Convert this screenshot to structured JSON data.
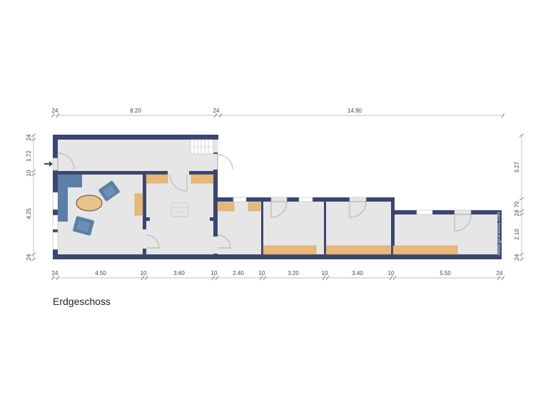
{
  "plan": {
    "floor_title": "Erdgeschoss",
    "watermark": "www.grundriss.com",
    "colors": {
      "wall": "#3b4670",
      "floor": "#e6e6e6",
      "cabinet": "#e8b878",
      "furniture": "#5b7fa6"
    },
    "dimensions": {
      "top": [
        "24",
        "8.20",
        "24",
        "14.90"
      ],
      "bottom": [
        "24",
        "4.50",
        "10",
        "3.60",
        "10",
        "2.40",
        "10",
        "3.20",
        "10",
        "3.40",
        "10",
        "5.50",
        "24"
      ],
      "left": [
        "24",
        "1.72",
        "10",
        "4.25",
        "24"
      ],
      "right": [
        "3.27",
        "24",
        "70",
        "2.10",
        "24"
      ]
    }
  }
}
